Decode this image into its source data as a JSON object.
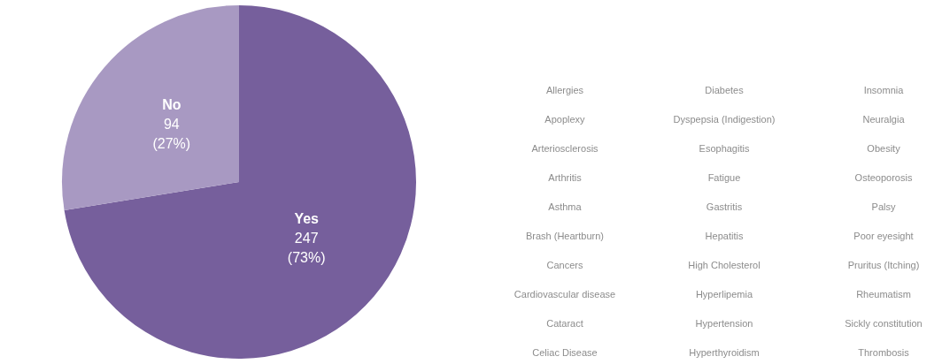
{
  "chart_data": [
    {
      "type": "pie",
      "categories": [
        "Yes",
        "No"
      ],
      "values": [
        247,
        94
      ],
      "colors": [
        "#765f9c",
        "#a899c2"
      ],
      "value_labels": [
        "247\n(73%)",
        "94\n(27%)"
      ]
    },
    {
      "type": "other",
      "annotations": [
        "Allergies",
        "Apoplexy",
        "Arteriosclerosis",
        "Arthritis",
        "Asthma",
        "Brash (Heartburn)",
        "Cancers",
        "Cardiovascular disease",
        "Cataract",
        "Celiac Disease",
        "Diabetes",
        "Dyspepsia (Indigestion)",
        "Esophagitis",
        "Fatigue",
        "Gastritis",
        "Hepatitis",
        "High Cholesterol",
        "Hyperlipemia",
        "Hypertension",
        "Hyperthyroidism",
        "Insomnia",
        "Neuralgia",
        "Obesity",
        "Osteoporosis",
        "Palsy",
        "Poor eyesight",
        "Pruritus (Itching)",
        "Rheumatism",
        "Sickly constitution",
        "Thrombosis"
      ]
    }
  ]
}
